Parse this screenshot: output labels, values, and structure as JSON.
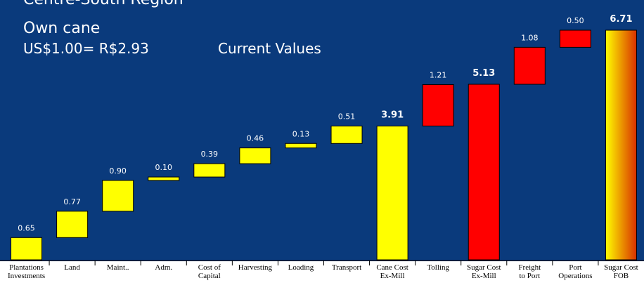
{
  "chart_data": {
    "type": "waterfall",
    "title": "Centre-South Region",
    "subtitle": "Own cane",
    "annotations": [
      "US$1.00= R$2.93",
      "Current Values"
    ],
    "categories": [
      [
        "Plantations",
        "Investments"
      ],
      [
        "Land"
      ],
      [
        "Maint.."
      ],
      [
        "Adm."
      ],
      [
        "Cost of",
        "Capital"
      ],
      [
        "Harvesting"
      ],
      [
        "Loading"
      ],
      [
        "Transport"
      ],
      [
        "Cane Cost",
        "Ex-Mill"
      ],
      [
        "Tolling"
      ],
      [
        "Sugar Cost",
        "Ex-Mill"
      ],
      [
        "Freight",
        "to Port"
      ],
      [
        "Port",
        "Operations"
      ],
      [
        "Sugar Cost",
        "FOB"
      ]
    ],
    "values": [
      0.65,
      0.77,
      0.9,
      0.1,
      0.39,
      0.46,
      0.13,
      0.51,
      3.91,
      1.21,
      5.13,
      1.08,
      0.5,
      6.71
    ],
    "value_labels": [
      "0.65",
      "0.77",
      "0.90",
      "0.10",
      "0.39",
      "0.46",
      "0.13",
      "0.51",
      "3.91",
      "1.21",
      "5.13",
      "1.08",
      "0.50",
      "6.71"
    ],
    "measure": [
      "relative",
      "relative",
      "relative",
      "relative",
      "relative",
      "relative",
      "relative",
      "relative",
      "total",
      "relative",
      "total",
      "relative",
      "relative",
      "total"
    ],
    "colors": [
      "#ffff00",
      "#ffff00",
      "#ffff00",
      "#ffff00",
      "#ffff00",
      "#ffff00",
      "#ffff00",
      "#ffff00",
      "#ffff00",
      "#ff0000",
      "#ff0000",
      "#ff0000",
      "#ff0000",
      "#ffff00"
    ],
    "last_bar_gradient": "#d83000"
  }
}
